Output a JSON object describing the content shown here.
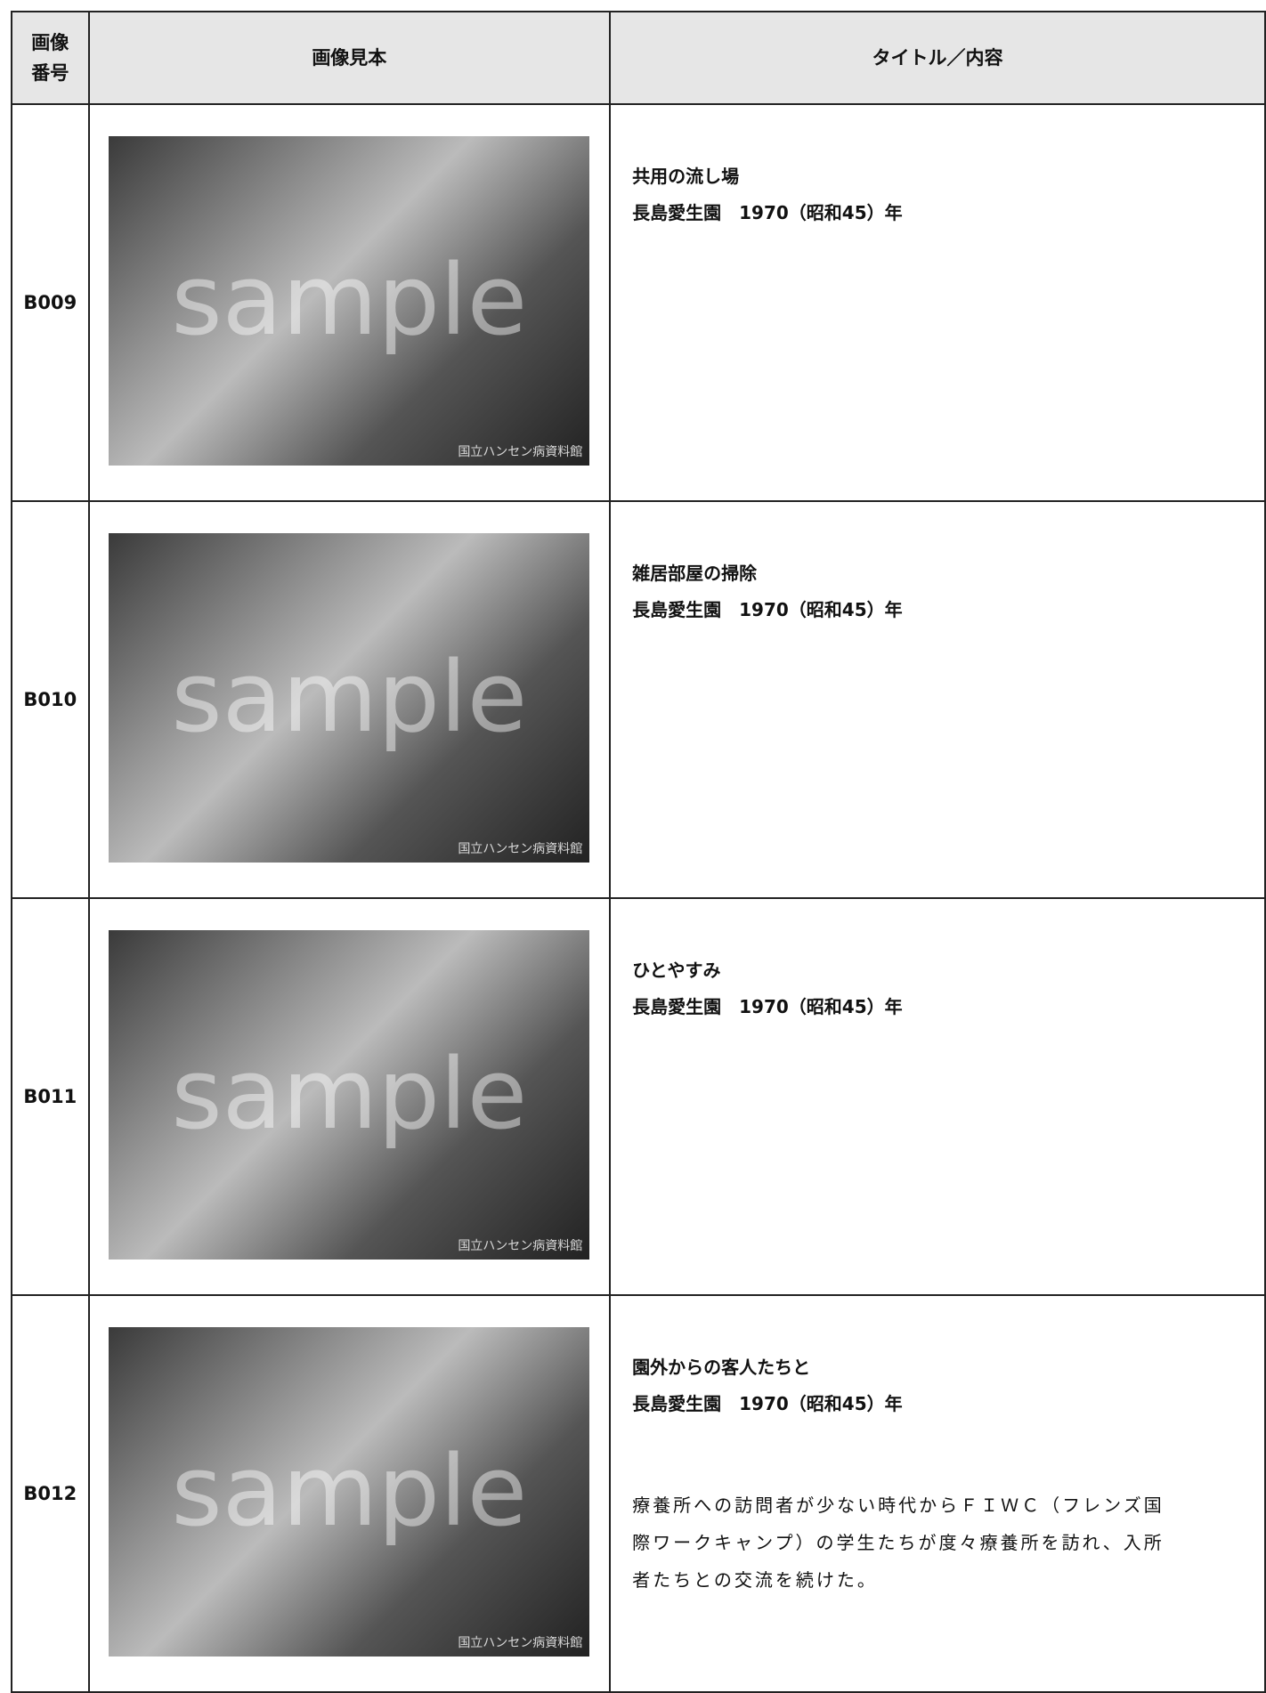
{
  "header": {
    "number": "画像\n番号",
    "sample": "画像見本",
    "title": "タイトル／内容"
  },
  "rows": [
    {
      "id": "B009",
      "title": "共用の流し場",
      "place_date": "長島愛生園　1970（昭和45）年",
      "watermark": "sample",
      "credit": "国立ハンセン病資料館"
    },
    {
      "id": "B010",
      "title": "雑居部屋の掃除",
      "place_date": "長島愛生園　1970（昭和45）年",
      "watermark": "sample",
      "credit": "国立ハンセン病資料館"
    },
    {
      "id": "B011",
      "title": "ひとやすみ",
      "place_date": "長島愛生園　1970（昭和45）年",
      "watermark": "sample",
      "credit": "国立ハンセン病資料館"
    },
    {
      "id": "B012",
      "title": "園外からの客人たちと",
      "place_date": "長島愛生園　1970（昭和45）年",
      "watermark": "sample",
      "credit": "国立ハンセン病資料館",
      "description": "療養所への訪問者が少ない時代からＦＩＷＣ（フレンズ国際ワークキャンプ）の学生たちが度々療養所を訪れ、入所者たちとの交流を続けた。"
    }
  ]
}
